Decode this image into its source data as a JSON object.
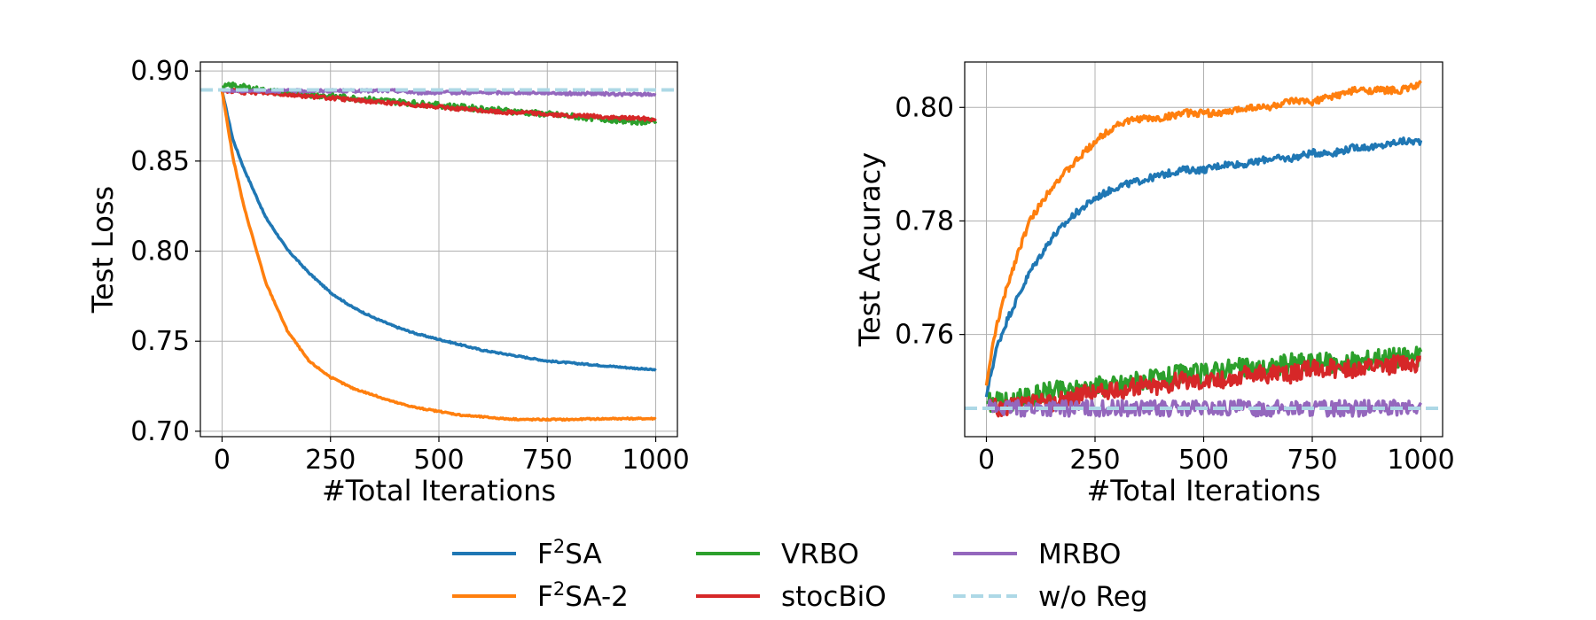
{
  "chart_data": [
    {
      "type": "line",
      "xlabel": "#Total Iterations",
      "ylabel": "Test Loss",
      "xlim": [
        -50,
        1050
      ],
      "ylim": [
        0.697,
        0.905
      ],
      "xticks": [
        0,
        250,
        500,
        750,
        1000
      ],
      "xtick_labels": [
        "0",
        "250",
        "500",
        "750",
        "1000"
      ],
      "yticks": [
        0.7,
        0.75,
        0.8,
        0.85,
        0.9
      ],
      "ytick_labels": [
        "0.70",
        "0.75",
        "0.80",
        "0.85",
        "0.90"
      ],
      "grid": true,
      "series": [
        {
          "name": "F²SA",
          "color": "#1f77b4",
          "x": [
            0,
            25,
            50,
            100,
            150,
            200,
            250,
            300,
            350,
            400,
            450,
            500,
            550,
            600,
            650,
            700,
            750,
            800,
            850,
            900,
            950,
            1000
          ],
          "y": [
            0.889,
            0.862,
            0.846,
            0.819,
            0.801,
            0.788,
            0.777,
            0.769,
            0.763,
            0.758,
            0.754,
            0.751,
            0.748,
            0.745,
            0.743,
            0.741,
            0.739,
            0.738,
            0.737,
            0.736,
            0.735,
            0.734
          ]
        },
        {
          "name": "F²SA-2",
          "color": "#ff7f0e",
          "x": [
            0,
            25,
            50,
            100,
            150,
            200,
            250,
            300,
            350,
            400,
            450,
            500,
            550,
            600,
            650,
            700,
            750,
            800,
            850,
            900,
            950,
            1000
          ],
          "y": [
            0.889,
            0.852,
            0.825,
            0.783,
            0.756,
            0.739,
            0.73,
            0.724,
            0.72,
            0.716,
            0.713,
            0.711,
            0.709,
            0.708,
            0.707,
            0.7065,
            0.7065,
            0.7065,
            0.7068,
            0.707,
            0.707,
            0.707
          ]
        },
        {
          "name": "VRBO",
          "color": "#2ca02c",
          "x": [
            0,
            25,
            50,
            100,
            150,
            200,
            250,
            300,
            350,
            400,
            450,
            500,
            550,
            600,
            650,
            700,
            750,
            800,
            850,
            900,
            950,
            1000
          ],
          "y": [
            0.891,
            0.892,
            0.891,
            0.889,
            0.888,
            0.887,
            0.886,
            0.885,
            0.884,
            0.883,
            0.882,
            0.881,
            0.88,
            0.879,
            0.878,
            0.877,
            0.876,
            0.875,
            0.874,
            0.873,
            0.872,
            0.872
          ]
        },
        {
          "name": "stocBiO",
          "color": "#d62728",
          "x": [
            0,
            25,
            50,
            100,
            150,
            200,
            250,
            300,
            350,
            400,
            450,
            500,
            550,
            600,
            650,
            700,
            750,
            800,
            850,
            900,
            950,
            1000
          ],
          "y": [
            0.889,
            0.889,
            0.888,
            0.888,
            0.887,
            0.886,
            0.885,
            0.884,
            0.883,
            0.882,
            0.881,
            0.88,
            0.879,
            0.878,
            0.877,
            0.877,
            0.876,
            0.875,
            0.875,
            0.874,
            0.874,
            0.873
          ]
        },
        {
          "name": "MRBO",
          "color": "#9467bd",
          "x": [
            0,
            25,
            50,
            100,
            150,
            200,
            250,
            300,
            350,
            400,
            450,
            500,
            550,
            600,
            650,
            700,
            750,
            800,
            850,
            900,
            950,
            1000
          ],
          "y": [
            0.889,
            0.889,
            0.889,
            0.889,
            0.889,
            0.889,
            0.889,
            0.889,
            0.889,
            0.889,
            0.888,
            0.888,
            0.888,
            0.888,
            0.888,
            0.888,
            0.888,
            0.8875,
            0.8875,
            0.8872,
            0.887,
            0.887
          ]
        },
        {
          "name": "w/o Reg",
          "color": "#add8e6",
          "dashed": true,
          "x": [
            -50,
            1050
          ],
          "y": [
            0.8895,
            0.8895
          ]
        }
      ]
    },
    {
      "type": "line",
      "xlabel": "#Total Iterations",
      "ylabel": "Test Accuracy",
      "xlim": [
        -50,
        1050
      ],
      "ylim": [
        0.742,
        0.808
      ],
      "xticks": [
        0,
        250,
        500,
        750,
        1000
      ],
      "xtick_labels": [
        "0",
        "250",
        "500",
        "750",
        "1000"
      ],
      "yticks": [
        0.76,
        0.78,
        0.8
      ],
      "ytick_labels": [
        "0.76",
        "0.78",
        "0.80"
      ],
      "grid": true,
      "series": [
        {
          "name": "F²SA",
          "color": "#1f77b4",
          "x": [
            0,
            10,
            25,
            50,
            75,
            100,
            150,
            200,
            250,
            300,
            350,
            400,
            450,
            500,
            550,
            600,
            650,
            700,
            750,
            800,
            850,
            900,
            950,
            1000
          ],
          "y": [
            0.749,
            0.753,
            0.758,
            0.763,
            0.767,
            0.771,
            0.777,
            0.781,
            0.784,
            0.786,
            0.787,
            0.788,
            0.789,
            0.789,
            0.79,
            0.79,
            0.791,
            0.791,
            0.792,
            0.792,
            0.793,
            0.793,
            0.794,
            0.794
          ]
        },
        {
          "name": "F²SA-2",
          "color": "#ff7f0e",
          "x": [
            0,
            10,
            25,
            50,
            75,
            100,
            150,
            200,
            250,
            300,
            350,
            400,
            450,
            500,
            550,
            600,
            650,
            700,
            750,
            800,
            850,
            900,
            950,
            1000
          ],
          "y": [
            0.751,
            0.756,
            0.762,
            0.769,
            0.775,
            0.78,
            0.786,
            0.79,
            0.794,
            0.797,
            0.798,
            0.798,
            0.799,
            0.799,
            0.799,
            0.8,
            0.8,
            0.801,
            0.801,
            0.802,
            0.803,
            0.803,
            0.803,
            0.804
          ]
        },
        {
          "name": "VRBO",
          "color": "#2ca02c",
          "x": [
            0,
            50,
            100,
            150,
            200,
            250,
            300,
            350,
            400,
            450,
            500,
            550,
            600,
            650,
            700,
            750,
            800,
            850,
            900,
            950,
            1000
          ],
          "y": [
            0.748,
            0.748,
            0.749,
            0.75,
            0.75,
            0.751,
            0.751,
            0.752,
            0.752,
            0.753,
            0.753,
            0.754,
            0.754,
            0.754,
            0.755,
            0.755,
            0.755,
            0.755,
            0.756,
            0.756,
            0.756
          ]
        },
        {
          "name": "stocBiO",
          "color": "#d62728",
          "x": [
            0,
            50,
            100,
            150,
            200,
            250,
            300,
            350,
            400,
            450,
            500,
            550,
            600,
            650,
            700,
            750,
            800,
            850,
            900,
            950,
            1000
          ],
          "y": [
            0.747,
            0.747,
            0.748,
            0.748,
            0.749,
            0.75,
            0.75,
            0.751,
            0.751,
            0.752,
            0.752,
            0.752,
            0.753,
            0.753,
            0.753,
            0.754,
            0.754,
            0.754,
            0.754,
            0.755,
            0.755
          ]
        },
        {
          "name": "MRBO",
          "color": "#9467bd",
          "x": [
            0,
            50,
            100,
            150,
            200,
            250,
            300,
            350,
            400,
            450,
            500,
            550,
            600,
            650,
            700,
            750,
            800,
            850,
            900,
            950,
            1000
          ],
          "y": [
            0.747,
            0.747,
            0.747,
            0.747,
            0.747,
            0.747,
            0.747,
            0.747,
            0.747,
            0.747,
            0.747,
            0.747,
            0.747,
            0.747,
            0.747,
            0.747,
            0.747,
            0.747,
            0.747,
            0.747,
            0.747
          ]
        },
        {
          "name": "w/o Reg",
          "color": "#add8e6",
          "dashed": true,
          "x": [
            -50,
            1050
          ],
          "y": [
            0.747,
            0.747
          ]
        }
      ]
    }
  ],
  "legend": {
    "placement": "bottom",
    "entries": [
      {
        "prefix": "F",
        "sup": "2",
        "suffix": "SA",
        "color": "#1f77b4",
        "dashed": false
      },
      {
        "prefix": "F",
        "sup": "2",
        "suffix": "SA-2",
        "color": "#ff7f0e",
        "dashed": false
      },
      {
        "prefix": "VRBO",
        "sup": "",
        "suffix": "",
        "color": "#2ca02c",
        "dashed": false
      },
      {
        "prefix": "stocBiO",
        "sup": "",
        "suffix": "",
        "color": "#d62728",
        "dashed": false
      },
      {
        "prefix": "MRBO",
        "sup": "",
        "suffix": "",
        "color": "#9467bd",
        "dashed": false
      },
      {
        "prefix": "w/o Reg",
        "sup": "",
        "suffix": "",
        "color": "#add8e6",
        "dashed": true
      }
    ]
  }
}
